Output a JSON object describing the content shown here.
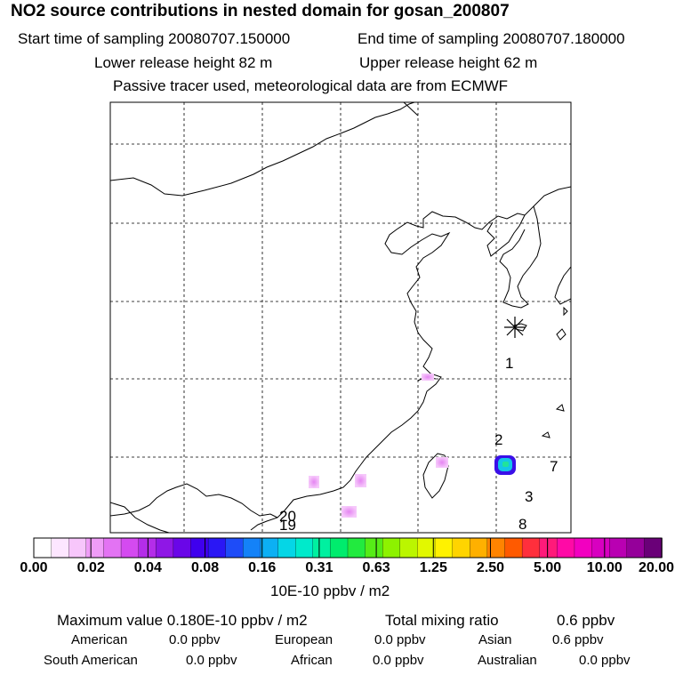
{
  "header": {
    "title": "NO2 source contributions in nested domain for gosan_200807",
    "start_label": "Start time of sampling 20080707.150000",
    "end_label": "End time of sampling 20080707.180000",
    "lower_label": "Lower release height   82 m",
    "upper_label": "Upper release height   62 m",
    "info": "Passive tracer used, meteorological data are from ECMWF"
  },
  "map": {
    "site_numbers": [
      "1",
      "2",
      "7",
      "3",
      "8",
      "20",
      "19"
    ]
  },
  "colorbar": {
    "colors": [
      "#ffffff",
      "#fde6ff",
      "#f7c6fb",
      "#ef9cf7",
      "#e373f3",
      "#d44af0",
      "#b42de9",
      "#8f17e6",
      "#6a06e8",
      "#3f00ee",
      "#2a17f5",
      "#1e4cf8",
      "#1482f8",
      "#0cb0f4",
      "#05d6e6",
      "#00eacb",
      "#00f0a0",
      "#00ec6d",
      "#22ea3f",
      "#56ec17",
      "#8df200",
      "#bbf600",
      "#e2f800",
      "#fff200",
      "#ffd400",
      "#ffb000",
      "#ff8400",
      "#ff5a00",
      "#ff2f3c",
      "#ff1a7a",
      "#ff0aa6",
      "#f200c0",
      "#d800c0",
      "#b900b2",
      "#95009a",
      "#6a0078"
    ],
    "ticks": [
      "0.00",
      "0.02",
      "0.04",
      "0.08",
      "0.16",
      "0.31",
      "0.63",
      "1.25",
      "2.50",
      "5.00",
      "10.00",
      "20.00"
    ],
    "unit": "10E-10 ppbv / m2"
  },
  "summary": {
    "max_label": "Maximum value  0.180E-10 ppbv / m2",
    "total_label": "Total mixing ratio",
    "total_value": "0.6 ppbv",
    "regions": [
      {
        "name": "American",
        "value": "0.0 ppbv"
      },
      {
        "name": "European",
        "value": "0.0 ppbv"
      },
      {
        "name": "Asian",
        "value": "0.6 ppbv"
      },
      {
        "name": "South American",
        "value": "0.0 ppbv"
      },
      {
        "name": "African",
        "value": "0.0 ppbv"
      },
      {
        "name": "Australian",
        "value": "0.0 ppbv"
      }
    ]
  }
}
